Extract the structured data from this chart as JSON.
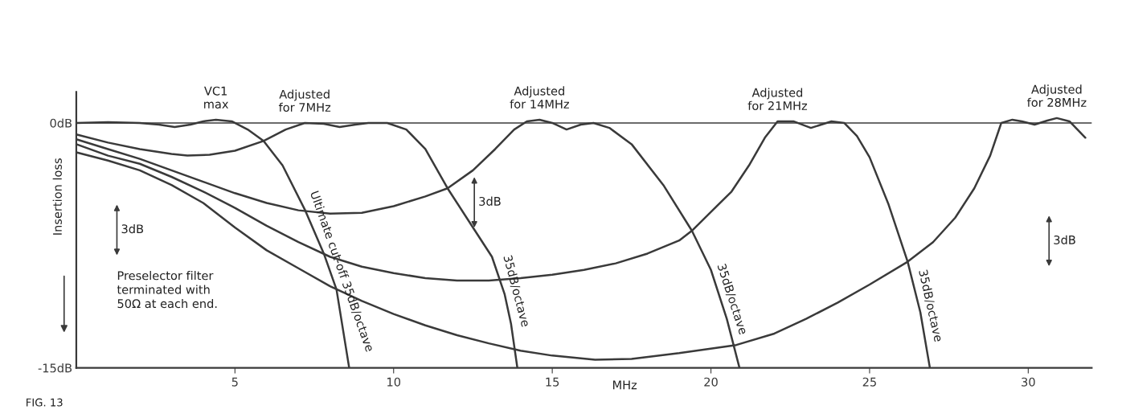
{
  "chart_data": {
    "type": "line",
    "xlabel": "MHz",
    "ylabel": "Insertion loss",
    "xlim": [
      0,
      32
    ],
    "xticks": [
      5,
      10,
      15,
      20,
      25,
      30
    ],
    "ylim": [
      -15,
      1.9
    ],
    "yticks": [
      {
        "value": 0,
        "label": "0dB"
      },
      {
        "value": -15,
        "label": "-15dB"
      }
    ],
    "grid": false,
    "legend": false,
    "marker": "none",
    "line_style": "solid",
    "ref_lines": [
      {
        "axis": "y",
        "value": 0,
        "label": null,
        "color": "#3a3a3a"
      }
    ],
    "series": [
      {
        "name": "VC1\nmax",
        "color": "#3a3a3a",
        "x": [
          0,
          1,
          2,
          2.6,
          3.1,
          3.6,
          4.0,
          4.4,
          4.9,
          5.4,
          5.9,
          6.5,
          7.2,
          7.8,
          8.2,
          8.6
        ],
        "values": [
          0,
          0.05,
          0,
          -0.1,
          -0.25,
          -0.1,
          0.1,
          0.2,
          0.1,
          -0.4,
          -1.1,
          -2.6,
          -5.3,
          -8.0,
          -10.2,
          -15
        ]
      },
      {
        "name": "Adjusted\nfor 7MHz",
        "color": "#3a3a3a",
        "x": [
          0,
          1,
          2,
          3,
          3.5,
          4.2,
          5,
          5.9,
          6.6,
          7.2,
          7.8,
          8.3,
          8.8,
          9.2,
          9.8,
          10.4,
          11.0,
          11.7,
          12.5,
          13.1,
          13.5,
          13.7,
          13.9
        ],
        "values": [
          -0.7,
          -1.2,
          -1.6,
          -1.9,
          -2.0,
          -1.95,
          -1.7,
          -1.1,
          -0.4,
          0,
          -0.05,
          -0.25,
          -0.1,
          0,
          0,
          -0.4,
          -1.6,
          -4.0,
          -6.4,
          -8.2,
          -10.5,
          -12.3,
          -15
        ]
      },
      {
        "name": "Adjusted\nfor 14MHz",
        "color": "#3a3a3a",
        "x": [
          0,
          1,
          2,
          3,
          4,
          5,
          6,
          7,
          8,
          9,
          10,
          11,
          11.7,
          12.5,
          13.2,
          13.8,
          14.2,
          14.6,
          15.0,
          15.45,
          15.9,
          16.3,
          16.8,
          17.5,
          18.5,
          19.4,
          20.0,
          20.5,
          20.9
        ],
        "values": [
          -1.0,
          -1.6,
          -2.2,
          -2.9,
          -3.6,
          -4.3,
          -4.9,
          -5.35,
          -5.55,
          -5.5,
          -5.1,
          -4.5,
          -4.0,
          -2.9,
          -1.6,
          -0.4,
          0.1,
          0.2,
          0,
          -0.4,
          -0.1,
          0,
          -0.3,
          -1.3,
          -3.8,
          -6.6,
          -9.0,
          -12.0,
          -15
        ]
      },
      {
        "name": "Adjusted\nfor 21MHz",
        "color": "#3a3a3a",
        "x": [
          0,
          1,
          2,
          3,
          4,
          5,
          6,
          7,
          8,
          9,
          10,
          11,
          12,
          13,
          14,
          15,
          16,
          17,
          18,
          19,
          19.4,
          20.65,
          21.2,
          21.7,
          22.1,
          22.6,
          23.15,
          23.8,
          24.2,
          24.6,
          25.0,
          25.6,
          26.2,
          26.6,
          26.9
        ],
        "values": [
          -1.3,
          -2.0,
          -2.5,
          -3.3,
          -4.2,
          -5.2,
          -6.3,
          -7.3,
          -8.2,
          -8.8,
          -9.2,
          -9.5,
          -9.65,
          -9.65,
          -9.5,
          -9.3,
          -9.0,
          -8.6,
          -8.0,
          -7.2,
          -6.6,
          -4.2,
          -2.6,
          -0.9,
          0.1,
          0.1,
          -0.3,
          0.1,
          0,
          -0.8,
          -2.1,
          -5.0,
          -8.5,
          -11.6,
          -15
        ]
      },
      {
        "name": "Adjusted\nfor 28MHz",
        "color": "#3a3a3a",
        "x": [
          0,
          1,
          2,
          3,
          4,
          5,
          6,
          7,
          8,
          9,
          10,
          11,
          12,
          13,
          14,
          15,
          16.35,
          17.5,
          19,
          20.8,
          22,
          23,
          24,
          25,
          26.2,
          27,
          27.7,
          28.3,
          28.8,
          29.15,
          29.5,
          29.8,
          30.2,
          30.6,
          30.9,
          31.3,
          31.8
        ],
        "values": [
          -1.8,
          -2.3,
          -2.9,
          -3.8,
          -4.9,
          -6.4,
          -7.8,
          -8.9,
          -10.0,
          -10.9,
          -11.7,
          -12.4,
          -13.0,
          -13.5,
          -13.95,
          -14.25,
          -14.5,
          -14.45,
          -14.1,
          -13.6,
          -12.9,
          -12.0,
          -11.0,
          -9.9,
          -8.5,
          -7.3,
          -5.8,
          -4.0,
          -2.0,
          0,
          0.2,
          0.1,
          -0.1,
          0.15,
          0.3,
          0.1,
          -0.9
        ]
      }
    ],
    "annotations": [
      {
        "text": "Ultimate cut-off 35dB/octave",
        "x": 8.0,
        "y": -9.1
      },
      {
        "text": "35dB/octave",
        "x": 13.5,
        "y": -10.3
      },
      {
        "text": "35dB/octave",
        "x": 20.3,
        "y": -10.8
      },
      {
        "text": "35dB/octave",
        "x": 26.55,
        "y": -11.2
      },
      "3dB",
      "3dB",
      "3dB",
      "Preselector filter\nterminated with\n50Ω at each end.",
      "FIG. 13"
    ]
  }
}
